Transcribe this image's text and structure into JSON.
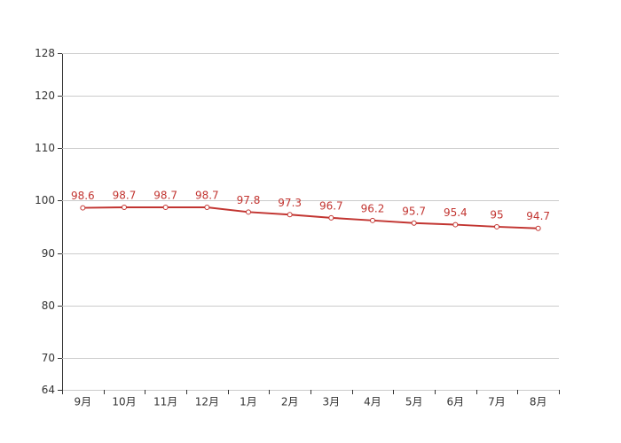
{
  "chart_data": {
    "type": "line",
    "categories": [
      "9月",
      "10月",
      "11月",
      "12月",
      "1月",
      "2月",
      "3月",
      "4月",
      "5月",
      "6月",
      "7月",
      "8月"
    ],
    "values": [
      98.6,
      98.7,
      98.7,
      98.7,
      97.8,
      97.3,
      96.7,
      96.2,
      95.7,
      95.4,
      95,
      94.7
    ],
    "color": "#c23531",
    "ylim": [
      64,
      128
    ],
    "yticks": [
      64,
      70,
      80,
      90,
      100,
      110,
      120,
      128
    ],
    "grid": true
  }
}
